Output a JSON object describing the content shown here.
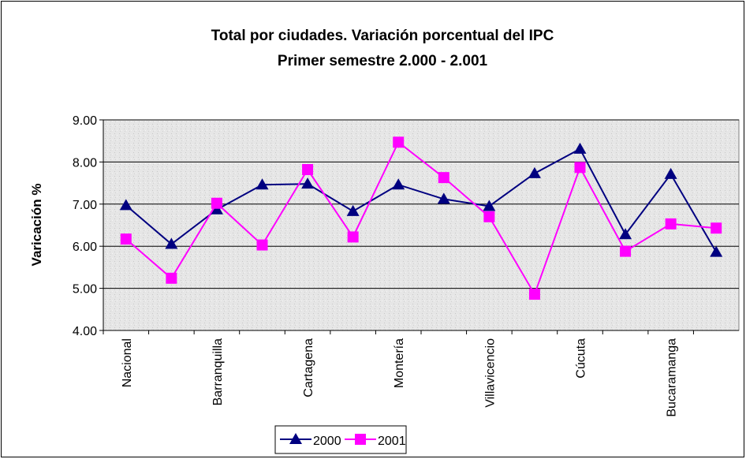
{
  "chart_data": {
    "type": "line",
    "title": "Total por ciudades. Variación porcentual  del IPC",
    "subtitle": "Primer  semestre 2.000 - 2.001",
    "y_label": "Varicación %",
    "categories": [
      "Nacional",
      null,
      "Barranquilla",
      null,
      "Cartagena",
      null,
      "Montería",
      null,
      "Villavicencio",
      null,
      "Cúcuta",
      null,
      "Bucaramanga",
      null
    ],
    "series": [
      {
        "name": "2000",
        "color": "#000080",
        "marker": "triangle",
        "values": [
          6.97,
          6.05,
          6.87,
          7.46,
          7.48,
          6.83,
          7.46,
          7.12,
          6.95,
          7.73,
          8.31,
          6.28,
          7.71,
          5.86
        ]
      },
      {
        "name": "2001",
        "color": "#ff00ff",
        "marker": "square",
        "values": [
          6.17,
          5.24,
          7.02,
          6.03,
          7.82,
          6.22,
          8.47,
          7.63,
          6.7,
          4.86,
          7.87,
          5.88,
          6.53,
          6.43
        ]
      }
    ],
    "ylim": [
      4,
      9
    ],
    "yticks": [
      {
        "value": 4,
        "label": "4.00"
      },
      {
        "value": 5,
        "label": "5.00"
      },
      {
        "value": 6,
        "label": "6.00"
      },
      {
        "value": 7,
        "label": "7.00"
      },
      {
        "value": 8,
        "label": "8.00"
      },
      {
        "value": 9,
        "label": "9.00"
      }
    ],
    "grid": true,
    "legend": "bottom"
  }
}
